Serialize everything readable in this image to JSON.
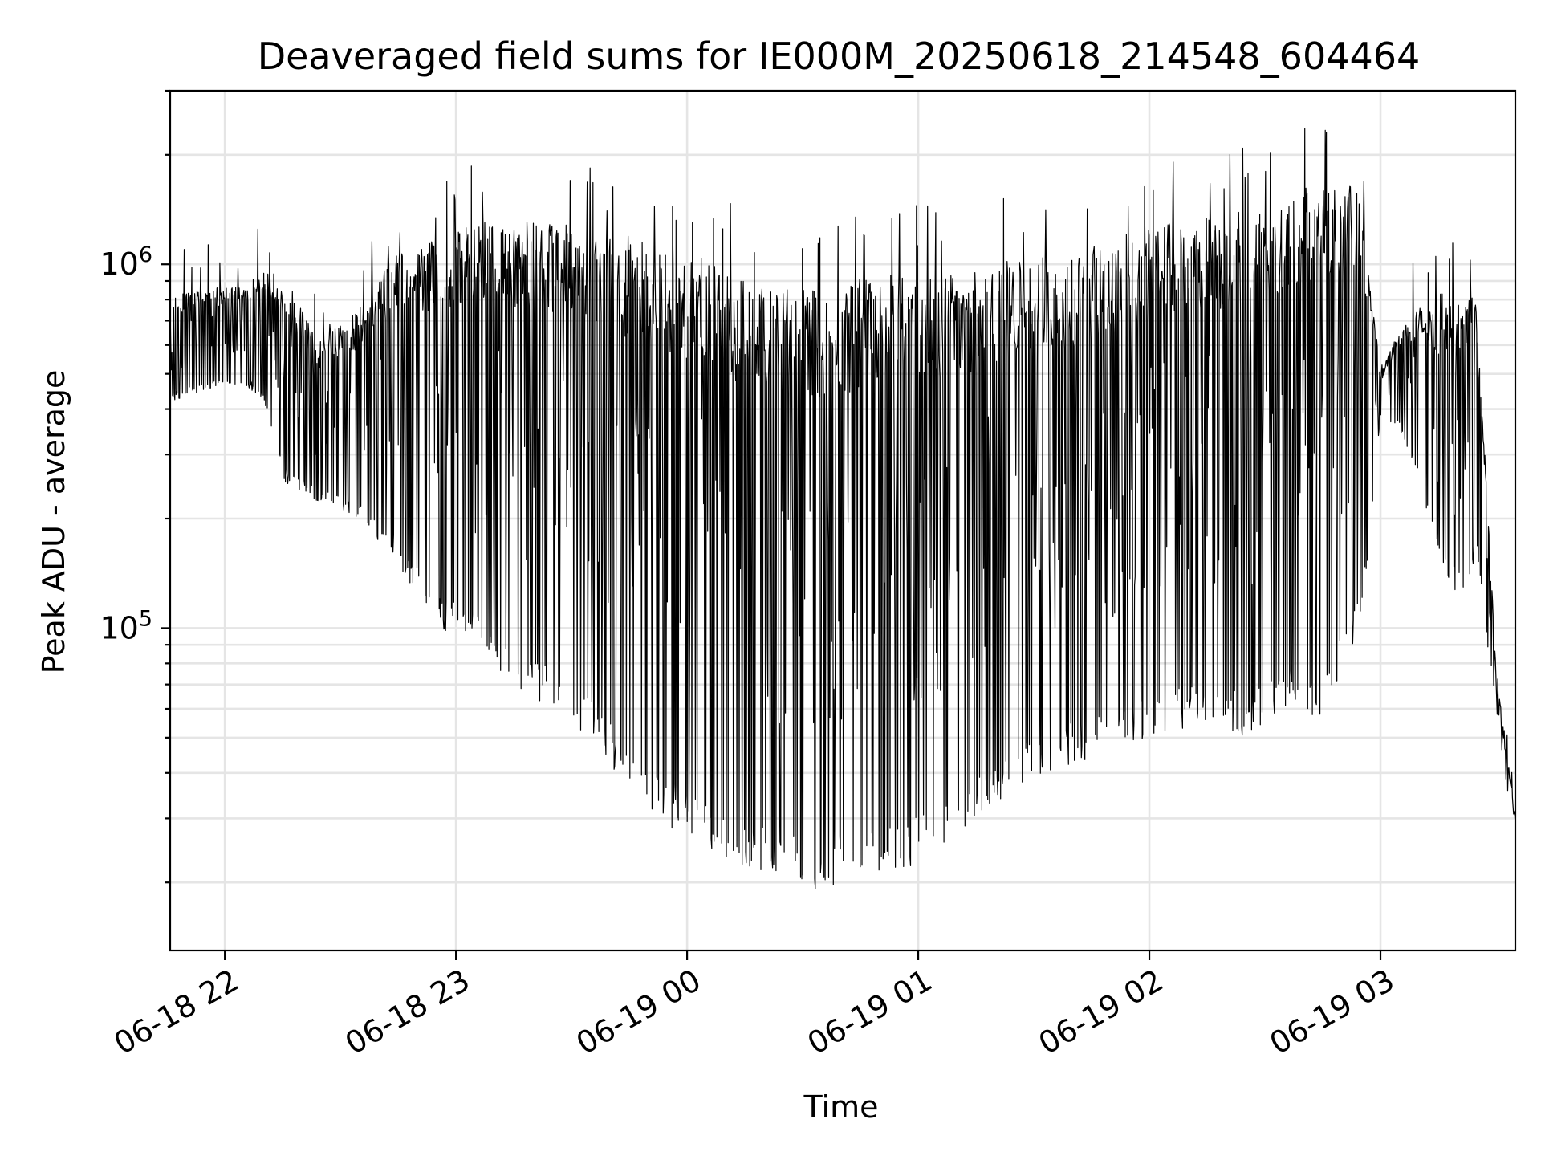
{
  "chart_data": {
    "type": "line",
    "title": "Deaveraged field sums for IE000M_20250618_214548_604464",
    "xlabel": "Time",
    "ylabel": "Peak ADU - average",
    "y_scale": "log",
    "ylim": [
      13000,
      3000000
    ],
    "xlim": [
      "2025-06-18 21:45:48",
      "2025-06-19 03:35:00"
    ],
    "x_ticks": [
      {
        "t": "2025-06-18 22:00:00",
        "label": "06-18 22"
      },
      {
        "t": "2025-06-18 23:00:00",
        "label": "06-18 23"
      },
      {
        "t": "2025-06-19 00:00:00",
        "label": "06-19 00"
      },
      {
        "t": "2025-06-19 01:00:00",
        "label": "06-19 01"
      },
      {
        "t": "2025-06-19 02:00:00",
        "label": "06-19 02"
      },
      {
        "t": "2025-06-19 03:00:00",
        "label": "06-19 03"
      }
    ],
    "y_ticks": [
      {
        "value": 100000,
        "base": "10",
        "exp": "5"
      },
      {
        "value": 1000000,
        "base": "10",
        "exp": "6"
      }
    ],
    "grid": true,
    "line_color": "#000000",
    "series": [
      {
        "description_points": "upper / lower envelope of the rapidly oscillating trace",
        "x": [
          "2025-06-18 21:45:48",
          "2025-06-18 21:55",
          "2025-06-18 22:05",
          "2025-06-18 22:10",
          "2025-06-18 22:15",
          "2025-06-18 22:25",
          "2025-06-18 22:35",
          "2025-06-18 22:45",
          "2025-06-18 22:55",
          "2025-06-18 23:05",
          "2025-06-18 23:15",
          "2025-06-18 23:25",
          "2025-06-18 23:35",
          "2025-06-18 23:45",
          "2025-06-18 23:55",
          "2025-06-19 00:05",
          "2025-06-19 00:15",
          "2025-06-19 00:25",
          "2025-06-19 00:35",
          "2025-06-19 00:45",
          "2025-06-19 00:55",
          "2025-06-19 01:05",
          "2025-06-19 01:15",
          "2025-06-19 01:25",
          "2025-06-19 01:35",
          "2025-06-19 01:45",
          "2025-06-19 01:55",
          "2025-06-19 02:05",
          "2025-06-19 02:15",
          "2025-06-19 02:25",
          "2025-06-19 02:35",
          "2025-06-19 02:45",
          "2025-06-19 02:55",
          "2025-06-19 03:00",
          "2025-06-19 03:05",
          "2025-06-19 03:10",
          "2025-06-19 03:15",
          "2025-06-19 03:20",
          "2025-06-19 03:25",
          "2025-06-19 03:30",
          "2025-06-19 03:35"
        ],
        "upper": [
          850000,
          880000,
          900000,
          1000000,
          1000000,
          650000,
          800000,
          1200000,
          1300000,
          1500000,
          1500000,
          1500000,
          1400000,
          1400000,
          1300000,
          1200000,
          1100000,
          1000000,
          1000000,
          1100000,
          1100000,
          1100000,
          1100000,
          1200000,
          1200000,
          1300000,
          1400000,
          1500000,
          1600000,
          1600000,
          1700000,
          2000000,
          1800000,
          500000,
          700000,
          800000,
          800000,
          900000,
          900000,
          80000,
          30000
        ],
        "lower": [
          420000,
          450000,
          460000,
          430000,
          250000,
          220000,
          200000,
          150000,
          100000,
          90000,
          70000,
          60000,
          50000,
          35000,
          28000,
          25000,
          22000,
          20000,
          19000,
          20000,
          21000,
          25000,
          30000,
          36000,
          40000,
          44000,
          48000,
          52000,
          55000,
          50000,
          60000,
          55000,
          100000,
          380000,
          350000,
          250000,
          160000,
          120000,
          150000,
          60000,
          25000
        ]
      }
    ]
  }
}
